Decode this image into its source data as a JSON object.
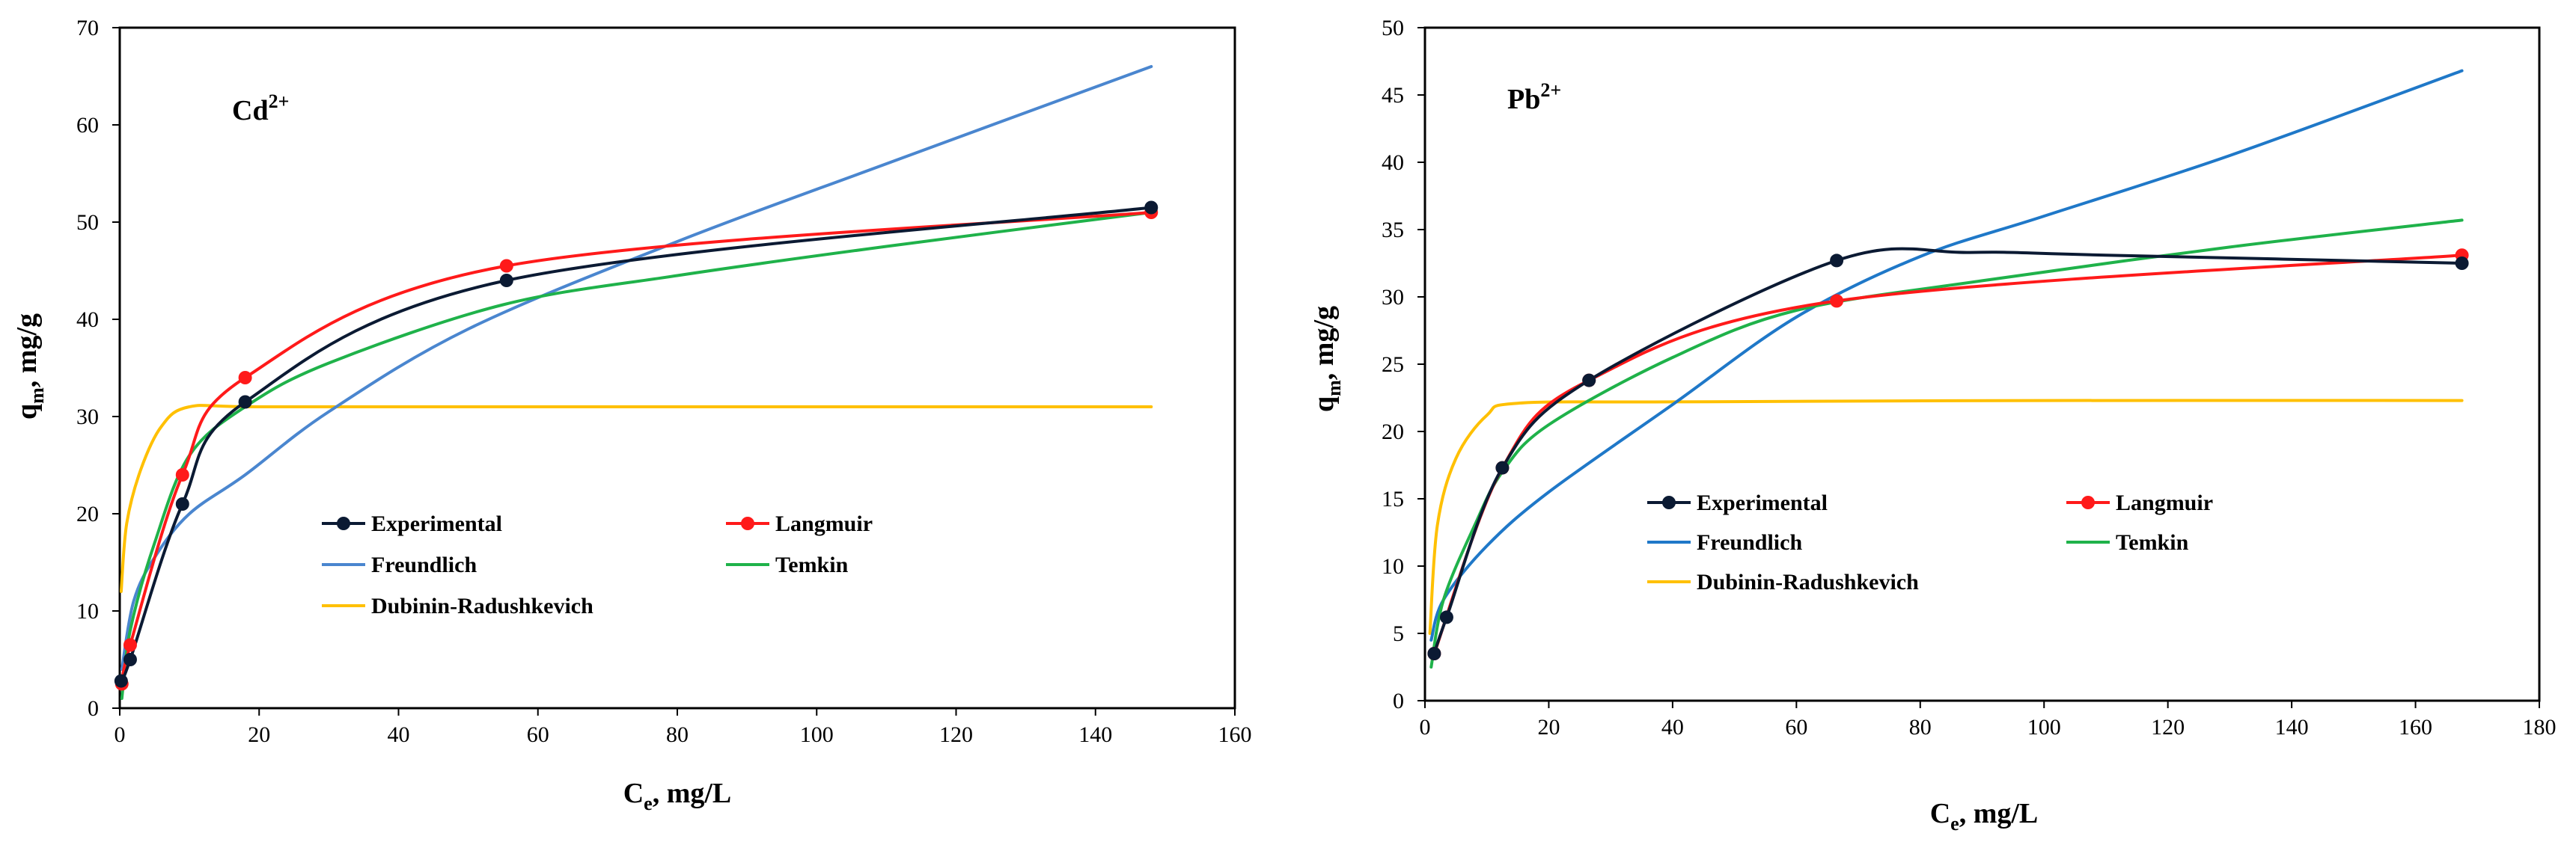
{
  "chart_data": [
    {
      "type": "line",
      "ion_label": {
        "base": "Cd",
        "sup": "2+"
      },
      "xlabel": {
        "base": "C",
        "sub": "e",
        "rest": ", mg/L"
      },
      "ylabel": {
        "base": "q",
        "sub": "m",
        "rest": ", mg/g"
      },
      "xlim": [
        0,
        160
      ],
      "ylim": [
        0,
        70
      ],
      "xticks": [
        0,
        20,
        40,
        60,
        80,
        100,
        120,
        140,
        160
      ],
      "yticks": [
        0,
        10,
        20,
        30,
        40,
        50,
        60,
        70
      ],
      "legend_position": "center-left",
      "series": [
        {
          "name": "Experimental",
          "color": "#0b1a33",
          "markers": true,
          "smooth": true,
          "points": [
            [
              0.2,
              2.8
            ],
            [
              1.5,
              5
            ],
            [
              9,
              21
            ],
            [
              18,
              31.5
            ],
            [
              55.5,
              44
            ],
            [
              148,
              51.5
            ]
          ]
        },
        {
          "name": "Langmuir",
          "color": "#ff1a1a",
          "markers": true,
          "smooth": true,
          "points": [
            [
              0.3,
              2.5
            ],
            [
              1.5,
              6.5
            ],
            [
              9,
              24
            ],
            [
              18,
              34
            ],
            [
              55.5,
              45.5
            ],
            [
              148,
              51
            ]
          ]
        },
        {
          "name": "Freundlich",
          "color": "#4a86cf",
          "markers": false,
          "smooth": true,
          "points": [
            [
              0.3,
              4
            ],
            [
              2,
              11
            ],
            [
              5,
              15.5
            ],
            [
              10,
              20
            ],
            [
              18,
              24
            ],
            [
              30,
              30.5
            ],
            [
              50,
              39
            ],
            [
              80,
              48
            ],
            [
              110,
              56
            ],
            [
              148,
              66
            ]
          ]
        },
        {
          "name": "Temkin",
          "color": "#1fb24a",
          "markers": false,
          "smooth": true,
          "points": [
            [
              0.3,
              1
            ],
            [
              1.5,
              8
            ],
            [
              5,
              17
            ],
            [
              10,
              26
            ],
            [
              18,
              31
            ],
            [
              30,
              35.5
            ],
            [
              55,
              41.5
            ],
            [
              80,
              44.5
            ],
            [
              110,
              47.5
            ],
            [
              148,
              51
            ]
          ]
        },
        {
          "name": "Dubinin-Radushkevich",
          "color": "#ffc000",
          "markers": false,
          "smooth": true,
          "points": [
            [
              0.2,
              12
            ],
            [
              1,
              19
            ],
            [
              3,
              24.5
            ],
            [
              6,
              29
            ],
            [
              10,
              31
            ],
            [
              20,
              31
            ],
            [
              60,
              31
            ],
            [
              100,
              31
            ],
            [
              148,
              31
            ]
          ]
        }
      ]
    },
    {
      "type": "line",
      "ion_label": {
        "base": "Pb",
        "sup": "2+"
      },
      "xlabel": {
        "base": "C",
        "sub": "e",
        "rest": ", mg/L"
      },
      "ylabel": {
        "base": "q",
        "sub": "m",
        "rest": ", mg/g"
      },
      "xlim": [
        0,
        180
      ],
      "ylim": [
        0,
        50
      ],
      "xticks": [
        0,
        20,
        40,
        60,
        80,
        100,
        120,
        140,
        160,
        180
      ],
      "yticks": [
        0,
        5,
        10,
        15,
        20,
        25,
        30,
        35,
        40,
        45,
        50
      ],
      "legend_position": "center-right",
      "series": [
        {
          "name": "Experimental",
          "color": "#0b1a33",
          "markers": true,
          "smooth": true,
          "points": [
            [
              1.5,
              3.5
            ],
            [
              3.5,
              6.2
            ],
            [
              12.5,
              17.3
            ],
            [
              26.5,
              23.8
            ],
            [
              66.5,
              32.7
            ],
            [
              88,
              33.3
            ],
            [
              110,
              33.1
            ],
            [
              167.5,
              32.5
            ]
          ]
        },
        {
          "name": "Langmuir",
          "color": "#ff1a1a",
          "markers": true,
          "smooth": true,
          "points": [
            [
              1.5,
              3.5
            ],
            [
              12.5,
              17.3
            ],
            [
              26.5,
              23.8
            ],
            [
              66.5,
              29.7
            ],
            [
              167.5,
              33.1
            ]
          ]
        },
        {
          "name": "Freundlich",
          "color": "#1f78c8",
          "markers": false,
          "smooth": true,
          "points": [
            [
              1,
              4.5
            ],
            [
              3,
              7.5
            ],
            [
              10,
              11.5
            ],
            [
              20,
              15.5
            ],
            [
              40,
              22
            ],
            [
              60,
              28.5
            ],
            [
              80,
              33
            ],
            [
              100,
              36
            ],
            [
              130,
              40.5
            ],
            [
              167.5,
              46.8
            ]
          ]
        },
        {
          "name": "Temkin",
          "color": "#1fb24a",
          "markers": false,
          "smooth": true,
          "points": [
            [
              1,
              2.5
            ],
            [
              3,
              7.5
            ],
            [
              8,
              13
            ],
            [
              12.5,
              17
            ],
            [
              20,
              20.5
            ],
            [
              40,
              25.5
            ],
            [
              60,
              29
            ],
            [
              90,
              31.2
            ],
            [
              130,
              33.7
            ],
            [
              167.5,
              35.7
            ]
          ]
        },
        {
          "name": "Dubinin-Radushkevich",
          "color": "#ffc000",
          "markers": false,
          "smooth": true,
          "points": [
            [
              0.8,
              5
            ],
            [
              2,
              13
            ],
            [
              5,
              18
            ],
            [
              10,
              21.2
            ],
            [
              15,
              22.1
            ],
            [
              40,
              22.2
            ],
            [
              100,
              22.3
            ],
            [
              167.5,
              22.3
            ]
          ]
        }
      ]
    }
  ]
}
